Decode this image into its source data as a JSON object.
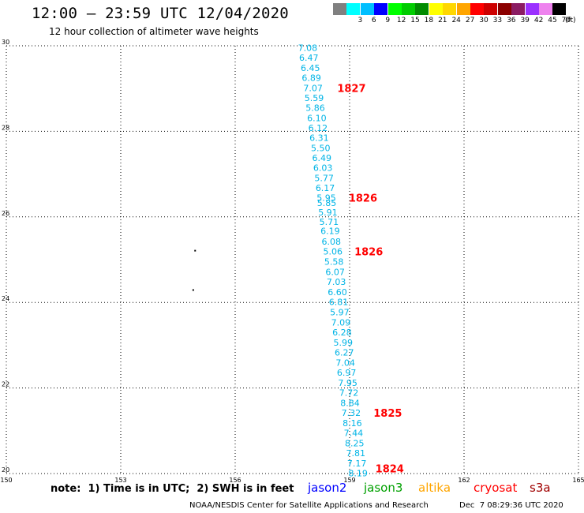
{
  "header": {
    "title": "12:00 – 23:59 UTC 12/04/2020",
    "subtitle": "12 hour collection of altimeter wave heights"
  },
  "legend": {
    "unit": "(ft)",
    "items": [
      {
        "label": "",
        "color": "#808080"
      },
      {
        "label": "3",
        "color": "#00ffff"
      },
      {
        "label": "6",
        "color": "#00bfff"
      },
      {
        "label": "9",
        "color": "#0000ff"
      },
      {
        "label": "12",
        "color": "#00ff00"
      },
      {
        "label": "15",
        "color": "#00cd00"
      },
      {
        "label": "18",
        "color": "#008b00"
      },
      {
        "label": "21",
        "color": "#ffff00"
      },
      {
        "label": "24",
        "color": "#ffd700"
      },
      {
        "label": "27",
        "color": "#ffa500"
      },
      {
        "label": "30",
        "color": "#ff0000"
      },
      {
        "label": "33",
        "color": "#cd0000"
      },
      {
        "label": "36",
        "color": "#8b0000"
      },
      {
        "label": "39",
        "color": "#8b1c62"
      },
      {
        "label": "42",
        "color": "#9b30ff"
      },
      {
        "label": "45",
        "color": "#ee82ee"
      },
      {
        "label": "70",
        "color": "#000000"
      }
    ]
  },
  "map": {
    "lon_range": [
      150,
      165
    ],
    "lat_range": [
      20,
      30
    ],
    "lon_ticks": [
      "150",
      "153",
      "156",
      "159",
      "162",
      "165"
    ],
    "lat_ticks": [
      "20",
      "22",
      "24",
      "26",
      "28",
      "30"
    ],
    "track_color": "#00b4e6",
    "time_label_color": "#ff0000",
    "track_points": [
      {
        "lon": 157.9,
        "lat": 29.95,
        "swh": "7.08"
      },
      {
        "lon": 157.93,
        "lat": 29.72,
        "swh": "6.47"
      },
      {
        "lon": 157.97,
        "lat": 29.48,
        "swh": "6.45"
      },
      {
        "lon": 158.0,
        "lat": 29.25,
        "swh": "6.89"
      },
      {
        "lon": 158.04,
        "lat": 29.01,
        "swh": "7.07"
      },
      {
        "lon": 158.07,
        "lat": 28.78,
        "swh": "5.59"
      },
      {
        "lon": 158.1,
        "lat": 28.55,
        "swh": "5.86"
      },
      {
        "lon": 158.14,
        "lat": 28.31,
        "swh": "6.10"
      },
      {
        "lon": 158.17,
        "lat": 28.08,
        "swh": "6.12"
      },
      {
        "lon": 158.2,
        "lat": 27.85,
        "swh": "6.31"
      },
      {
        "lon": 158.24,
        "lat": 27.61,
        "swh": "5.50"
      },
      {
        "lon": 158.27,
        "lat": 27.38,
        "swh": "6.49"
      },
      {
        "lon": 158.3,
        "lat": 27.15,
        "swh": "6.03"
      },
      {
        "lon": 158.33,
        "lat": 26.91,
        "swh": "5.77"
      },
      {
        "lon": 158.36,
        "lat": 26.68,
        "swh": "6.17"
      },
      {
        "lon": 158.39,
        "lat": 26.45,
        "swh": "5.95"
      },
      {
        "lon": 158.4,
        "lat": 26.33,
        "swh": "5.85"
      },
      {
        "lon": 158.43,
        "lat": 26.11,
        "swh": "5.91"
      },
      {
        "lon": 158.46,
        "lat": 25.89,
        "swh": "5.71"
      },
      {
        "lon": 158.49,
        "lat": 25.67,
        "swh": "6.19"
      },
      {
        "lon": 158.52,
        "lat": 25.42,
        "swh": "6.08"
      },
      {
        "lon": 158.56,
        "lat": 25.19,
        "swh": "5.06"
      },
      {
        "lon": 158.59,
        "lat": 24.95,
        "swh": "5.58"
      },
      {
        "lon": 158.62,
        "lat": 24.71,
        "swh": "6.07"
      },
      {
        "lon": 158.65,
        "lat": 24.48,
        "swh": "7.03"
      },
      {
        "lon": 158.68,
        "lat": 24.24,
        "swh": "6.60"
      },
      {
        "lon": 158.71,
        "lat": 24.01,
        "swh": "6.81"
      },
      {
        "lon": 158.74,
        "lat": 23.77,
        "swh": "5.97"
      },
      {
        "lon": 158.77,
        "lat": 23.53,
        "swh": "7.09"
      },
      {
        "lon": 158.8,
        "lat": 23.3,
        "swh": "6.28"
      },
      {
        "lon": 158.83,
        "lat": 23.06,
        "swh": "5.99"
      },
      {
        "lon": 158.86,
        "lat": 22.83,
        "swh": "6.27"
      },
      {
        "lon": 158.89,
        "lat": 22.59,
        "swh": "7.04"
      },
      {
        "lon": 158.92,
        "lat": 22.36,
        "swh": "6.97"
      },
      {
        "lon": 158.95,
        "lat": 22.12,
        "swh": "7.95"
      },
      {
        "lon": 158.98,
        "lat": 21.89,
        "swh": "7.72"
      },
      {
        "lon": 159.01,
        "lat": 21.65,
        "swh": "8.84"
      },
      {
        "lon": 159.04,
        "lat": 21.42,
        "swh": "7.32"
      },
      {
        "lon": 159.07,
        "lat": 21.18,
        "swh": "8.16"
      },
      {
        "lon": 159.1,
        "lat": 20.95,
        "swh": "7.44"
      },
      {
        "lon": 159.13,
        "lat": 20.71,
        "swh": "8.25"
      },
      {
        "lon": 159.16,
        "lat": 20.48,
        "swh": "7.81"
      },
      {
        "lon": 159.19,
        "lat": 20.24,
        "swh": "7.17"
      },
      {
        "lon": 159.22,
        "lat": 20.01,
        "swh": "8.19"
      }
    ],
    "time_labels": [
      {
        "lon": 159.05,
        "lat": 29.01,
        "text": "1827"
      },
      {
        "lon": 159.35,
        "lat": 26.45,
        "text": "1826"
      },
      {
        "lon": 159.5,
        "lat": 25.19,
        "text": "1826"
      },
      {
        "lon": 160.0,
        "lat": 21.42,
        "text": "1825"
      },
      {
        "lon": 160.05,
        "lat": 20.12,
        "text": "1824"
      }
    ],
    "land_points": [
      {
        "lon": 154.95,
        "lat": 25.21
      },
      {
        "lon": 154.9,
        "lat": 24.29
      }
    ]
  },
  "footer": {
    "note": "note:  1) Time is in UTC;  2) SWH is in feet",
    "missions": [
      {
        "name": "jason2",
        "color": "#0000ff"
      },
      {
        "name": "jason3",
        "color": "#00a000"
      },
      {
        "name": "altika",
        "color": "#ffa500"
      },
      {
        "name": "cryosat",
        "color": "#ff0000"
      },
      {
        "name": "s3a",
        "color": "#a00000"
      }
    ],
    "credit": "NOAA/NESDIS Center for Satellite Applications and Research",
    "timestamp": "Dec  7 08:29:36 UTC 2020"
  }
}
